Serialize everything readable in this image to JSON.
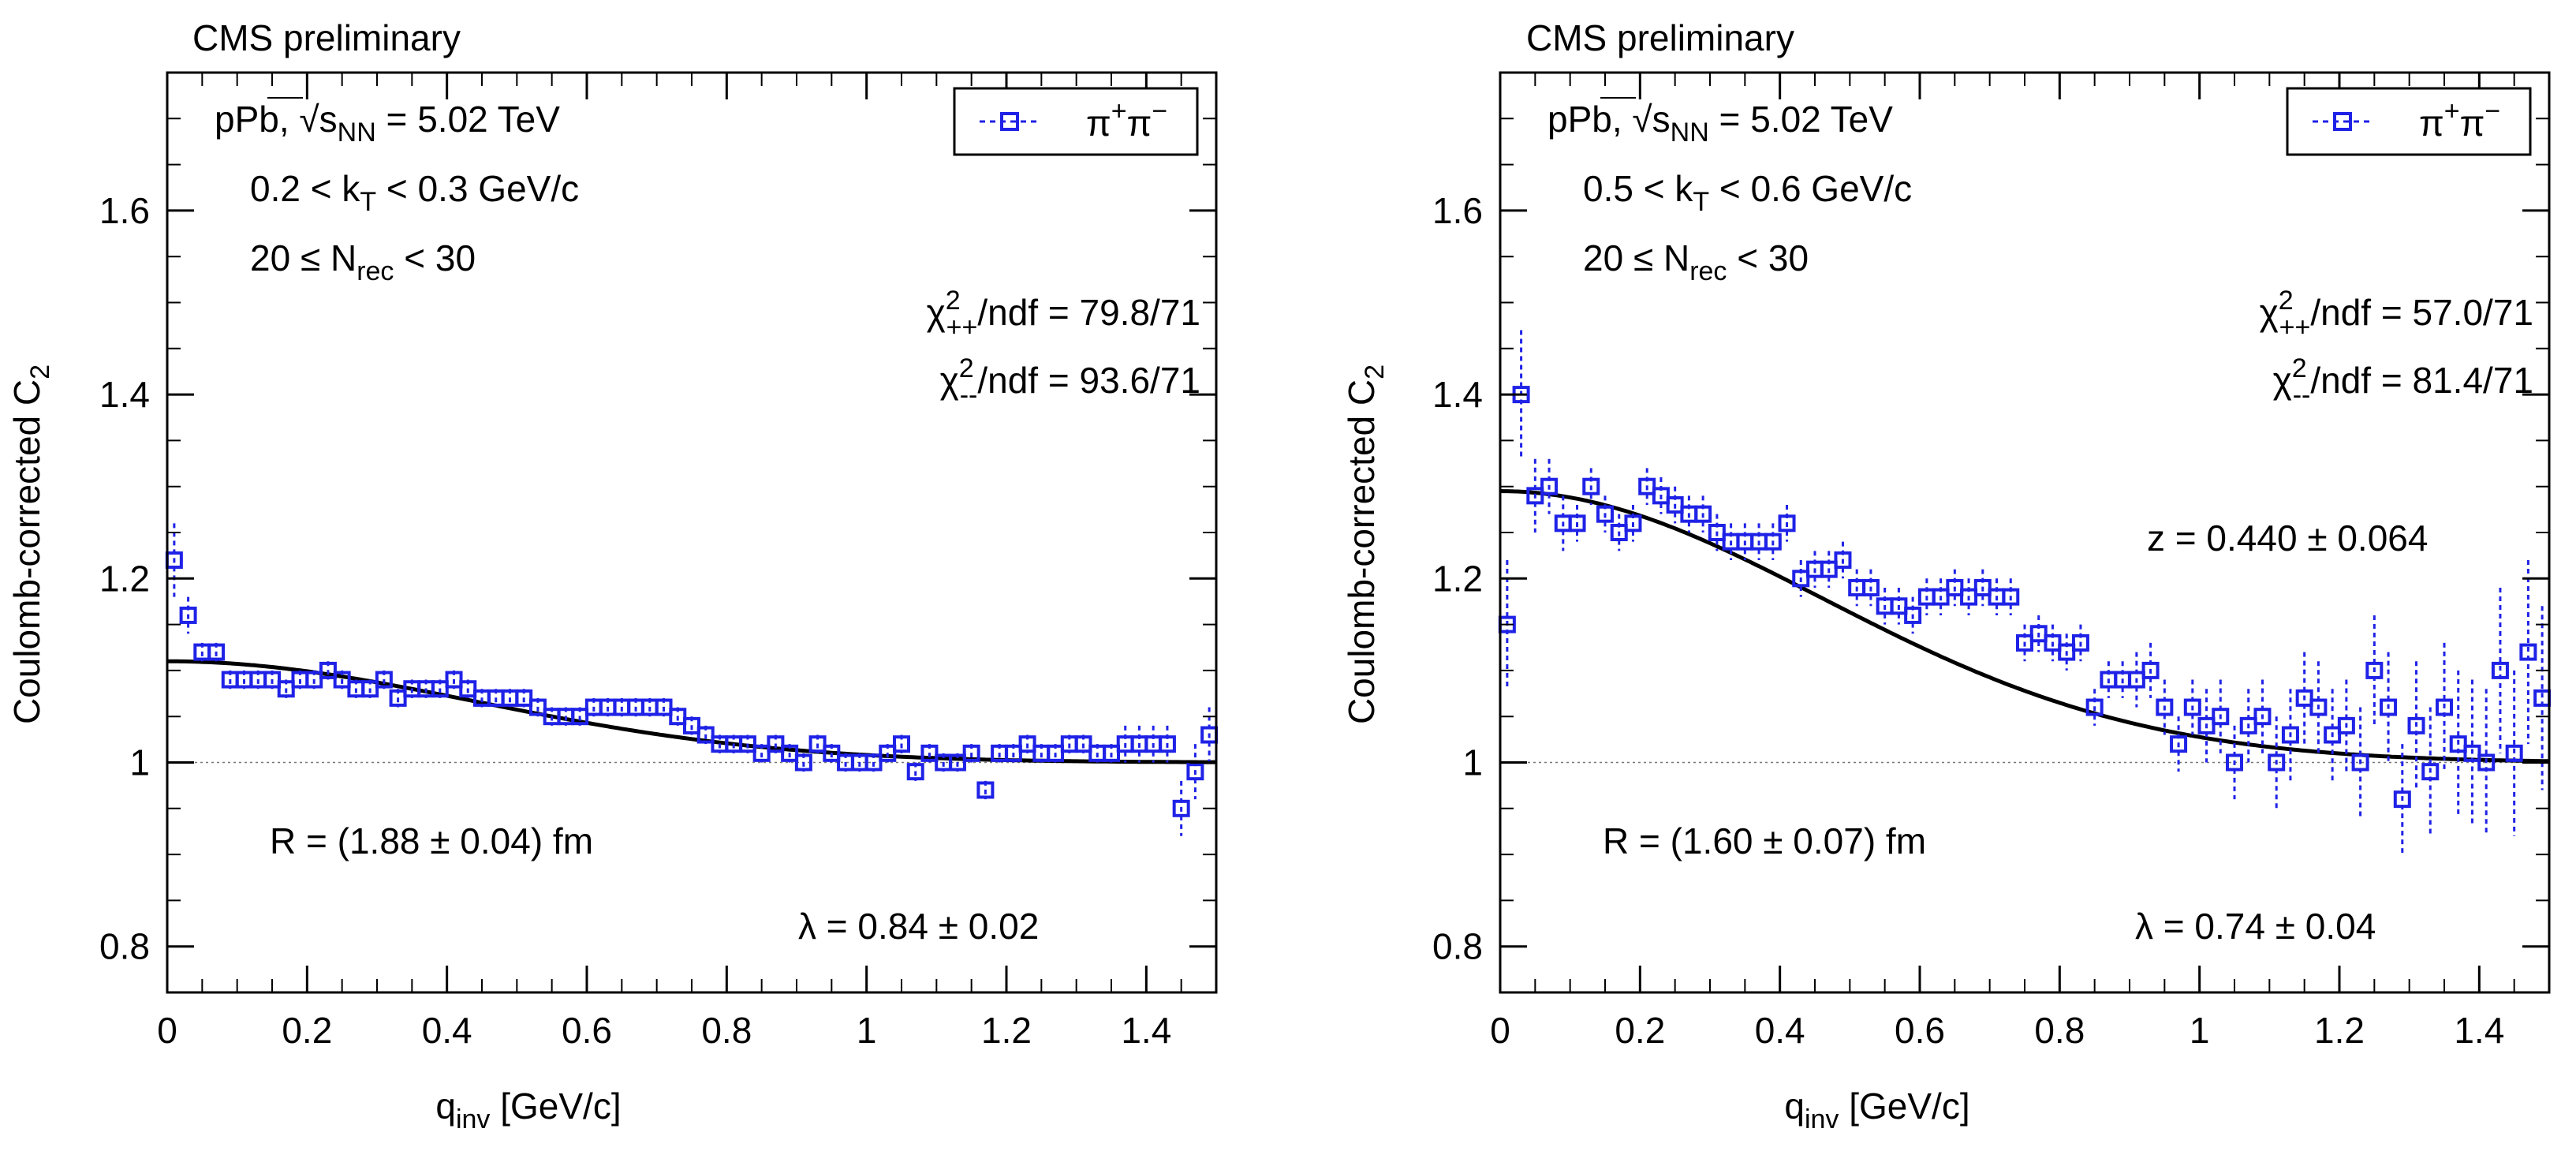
{
  "colors": {
    "data": "#1f22e6",
    "fit": "#000000",
    "reference": "#777777"
  },
  "chart_data": [
    {
      "type": "scatter",
      "header": "CMS preliminary",
      "system": "pPb,",
      "energy_value": " = 5.02 TeV",
      "kt_range": [
        "0.2 < k",
        " < 0.3 GeV/c"
      ],
      "mult_range": [
        "20 ≤ N",
        " < 30"
      ],
      "chi2_pp": "/ndf = 79.8/71",
      "chi2_mm": "/ndf = 93.6/71",
      "radius_label": "R = (1.88 ± 0.04) fm",
      "lambda_label": "λ = 0.84 ± 0.02",
      "legend_label": "π",
      "xlabel_main": "q",
      "xlabel_sub": "inv",
      "xlabel_unit": " [GeV/c]",
      "ylabel_main": "Coulomb-corrected C",
      "ylabel_sub": "2",
      "xlim": [
        0,
        1.5
      ],
      "ylim": [
        0.75,
        1.75
      ],
      "xticks": [
        "0",
        "0.2",
        "0.4",
        "0.6",
        "0.8",
        "1",
        "1.2",
        "1.4"
      ],
      "yticks": [
        "0.8",
        "1",
        "1.2",
        "1.4",
        "1.6"
      ],
      "fit": {
        "R_fm": 1.88,
        "lambda": 0.84,
        "baseline": 1.0
      },
      "series": [
        {
          "name": "π+π−",
          "x": [
            0.01,
            0.03,
            0.05,
            0.07,
            0.09,
            0.11,
            0.13,
            0.15,
            0.17,
            0.19,
            0.21,
            0.23,
            0.25,
            0.27,
            0.29,
            0.31,
            0.33,
            0.35,
            0.37,
            0.39,
            0.41,
            0.43,
            0.45,
            0.47,
            0.49,
            0.51,
            0.53,
            0.55,
            0.57,
            0.59,
            0.61,
            0.63,
            0.65,
            0.67,
            0.69,
            0.71,
            0.73,
            0.75,
            0.77,
            0.79,
            0.81,
            0.83,
            0.85,
            0.87,
            0.89,
            0.91,
            0.93,
            0.95,
            0.97,
            0.99,
            1.01,
            1.03,
            1.05,
            1.07,
            1.09,
            1.11,
            1.13,
            1.15,
            1.17,
            1.19,
            1.21,
            1.23,
            1.25,
            1.27,
            1.29,
            1.31,
            1.33,
            1.35,
            1.37,
            1.39,
            1.41,
            1.43,
            1.45,
            1.47,
            1.49
          ],
          "y": [
            1.22,
            1.16,
            1.12,
            1.12,
            1.09,
            1.09,
            1.09,
            1.09,
            1.08,
            1.09,
            1.09,
            1.1,
            1.09,
            1.08,
            1.08,
            1.09,
            1.07,
            1.08,
            1.08,
            1.08,
            1.09,
            1.08,
            1.07,
            1.07,
            1.07,
            1.07,
            1.06,
            1.05,
            1.05,
            1.05,
            1.06,
            1.06,
            1.06,
            1.06,
            1.06,
            1.06,
            1.05,
            1.04,
            1.03,
            1.02,
            1.02,
            1.02,
            1.01,
            1.02,
            1.01,
            1.0,
            1.02,
            1.01,
            1.0,
            1.0,
            1.0,
            1.01,
            1.02,
            0.99,
            1.01,
            1.0,
            1.0,
            1.01,
            0.97,
            1.01,
            1.01,
            1.02,
            1.01,
            1.01,
            1.02,
            1.02,
            1.01,
            1.01,
            1.02,
            1.02,
            1.02,
            1.02,
            0.95,
            0.99,
            1.03
          ],
          "err": [
            0.04,
            0.02,
            0.01,
            0.01,
            0.01,
            0.01,
            0.01,
            0.01,
            0.01,
            0.01,
            0.01,
            0.01,
            0.01,
            0.01,
            0.01,
            0.01,
            0.01,
            0.01,
            0.01,
            0.01,
            0.01,
            0.01,
            0.01,
            0.01,
            0.01,
            0.01,
            0.01,
            0.01,
            0.01,
            0.01,
            0.01,
            0.01,
            0.01,
            0.01,
            0.01,
            0.01,
            0.01,
            0.01,
            0.01,
            0.01,
            0.01,
            0.01,
            0.01,
            0.01,
            0.01,
            0.01,
            0.01,
            0.01,
            0.01,
            0.01,
            0.01,
            0.01,
            0.01,
            0.01,
            0.01,
            0.01,
            0.01,
            0.01,
            0.01,
            0.01,
            0.01,
            0.01,
            0.01,
            0.01,
            0.01,
            0.01,
            0.01,
            0.01,
            0.02,
            0.02,
            0.02,
            0.02,
            0.03,
            0.03,
            0.03
          ]
        }
      ]
    },
    {
      "type": "scatter",
      "header": "CMS preliminary",
      "system": "pPb,",
      "energy_value": " = 5.02 TeV",
      "kt_range": [
        "0.5 < k",
        " < 0.6 GeV/c"
      ],
      "mult_range": [
        "20 ≤ N",
        " < 30"
      ],
      "chi2_pp": "/ndf = 57.0/71",
      "chi2_mm": "/ndf = 81.4/71",
      "z_label": "z = 0.440 ± 0.064",
      "radius_label": "R = (1.60 ± 0.07) fm",
      "lambda_label": "λ = 0.74 ± 0.04",
      "legend_label": "π",
      "xlabel_main": "q",
      "xlabel_sub": "inv",
      "xlabel_unit": " [GeV/c]",
      "ylabel_main": "Coulomb-corrected C",
      "ylabel_sub": "2",
      "xlim": [
        0,
        1.5
      ],
      "ylim": [
        0.75,
        1.75
      ],
      "xticks": [
        "0",
        "0.2",
        "0.4",
        "0.6",
        "0.8",
        "1",
        "1.2",
        "1.4"
      ],
      "yticks": [
        "0.8",
        "1",
        "1.2",
        "1.4",
        "1.6"
      ],
      "fit": {
        "R_fm": 1.6,
        "lambda": 0.74,
        "baseline": 1.0,
        "z": 0.44
      },
      "series": [
        {
          "name": "π+π−",
          "x": [
            0.01,
            0.03,
            0.05,
            0.07,
            0.09,
            0.11,
            0.13,
            0.15,
            0.17,
            0.19,
            0.21,
            0.23,
            0.25,
            0.27,
            0.29,
            0.31,
            0.33,
            0.35,
            0.37,
            0.39,
            0.41,
            0.43,
            0.45,
            0.47,
            0.49,
            0.51,
            0.53,
            0.55,
            0.57,
            0.59,
            0.61,
            0.63,
            0.65,
            0.67,
            0.69,
            0.71,
            0.73,
            0.75,
            0.77,
            0.79,
            0.81,
            0.83,
            0.85,
            0.87,
            0.89,
            0.91,
            0.93,
            0.95,
            0.97,
            0.99,
            1.01,
            1.03,
            1.05,
            1.07,
            1.09,
            1.11,
            1.13,
            1.15,
            1.17,
            1.19,
            1.21,
            1.23,
            1.25,
            1.27,
            1.29,
            1.31,
            1.33,
            1.35,
            1.37,
            1.39,
            1.41,
            1.43,
            1.45,
            1.47,
            1.49
          ],
          "y": [
            1.15,
            1.4,
            1.29,
            1.3,
            1.26,
            1.26,
            1.3,
            1.27,
            1.25,
            1.26,
            1.3,
            1.29,
            1.28,
            1.27,
            1.27,
            1.25,
            1.24,
            1.24,
            1.24,
            1.24,
            1.26,
            1.2,
            1.21,
            1.21,
            1.22,
            1.19,
            1.19,
            1.17,
            1.17,
            1.16,
            1.18,
            1.18,
            1.19,
            1.18,
            1.19,
            1.18,
            1.18,
            1.13,
            1.14,
            1.13,
            1.12,
            1.13,
            1.06,
            1.09,
            1.09,
            1.09,
            1.1,
            1.06,
            1.02,
            1.06,
            1.04,
            1.05,
            1.0,
            1.04,
            1.05,
            1.0,
            1.03,
            1.07,
            1.06,
            1.03,
            1.04,
            1.0,
            1.1,
            1.06,
            0.96,
            1.04,
            0.99,
            1.06,
            1.02,
            1.01,
            1.0,
            1.1,
            1.01,
            1.12,
            1.07
          ],
          "err": [
            0.07,
            0.07,
            0.04,
            0.03,
            0.03,
            0.02,
            0.02,
            0.02,
            0.02,
            0.02,
            0.02,
            0.02,
            0.02,
            0.02,
            0.02,
            0.02,
            0.02,
            0.02,
            0.02,
            0.02,
            0.02,
            0.02,
            0.02,
            0.02,
            0.02,
            0.02,
            0.02,
            0.02,
            0.02,
            0.02,
            0.02,
            0.02,
            0.02,
            0.02,
            0.02,
            0.02,
            0.02,
            0.02,
            0.02,
            0.02,
            0.02,
            0.02,
            0.02,
            0.02,
            0.02,
            0.03,
            0.03,
            0.03,
            0.03,
            0.03,
            0.04,
            0.04,
            0.04,
            0.04,
            0.04,
            0.05,
            0.05,
            0.05,
            0.05,
            0.05,
            0.05,
            0.06,
            0.06,
            0.06,
            0.06,
            0.07,
            0.07,
            0.07,
            0.08,
            0.08,
            0.08,
            0.09,
            0.09,
            0.1,
            0.1
          ]
        }
      ]
    }
  ]
}
